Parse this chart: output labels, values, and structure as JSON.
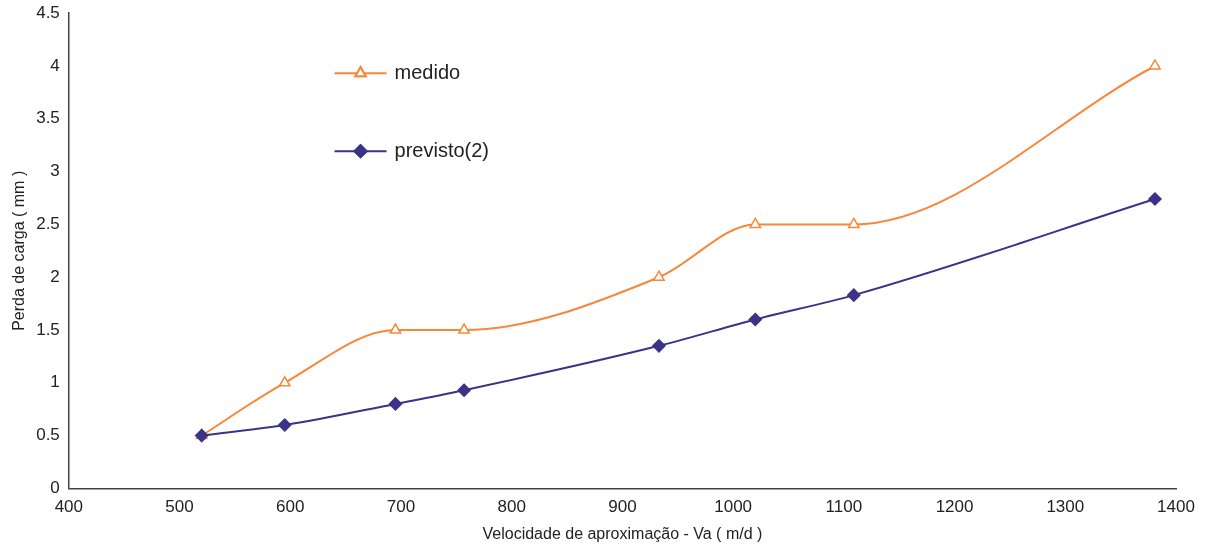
{
  "chart_data": {
    "type": "line",
    "xlabel": "Velocidade de aproximação - Va ( m/d )",
    "ylabel": "Perda de carga ( mm )",
    "xlim": [
      400,
      1400
    ],
    "xticks": [
      400,
      500,
      600,
      700,
      800,
      900,
      1000,
      1100,
      1200,
      1300,
      1400
    ],
    "ylim": [
      0,
      4.5
    ],
    "yticks": [
      0,
      0.5,
      1,
      1.5,
      2,
      2.5,
      3,
      3.5,
      4,
      4.5
    ],
    "grid": false,
    "legend": "top left",
    "x": [
      520,
      595,
      695,
      757,
      933,
      1020,
      1109,
      1381
    ],
    "series": [
      {
        "name": "medido",
        "color": "#f7873a",
        "marker": "triangle",
        "values": [
          0.5,
          1.0,
          1.5,
          1.5,
          2.0,
          2.5,
          2.5,
          4.0
        ]
      },
      {
        "name": "previsto(2)",
        "color": "#3b3387",
        "marker": "diamond",
        "values": [
          0.5,
          0.6,
          0.8,
          0.93,
          1.35,
          1.6,
          1.83,
          2.74
        ]
      }
    ]
  }
}
